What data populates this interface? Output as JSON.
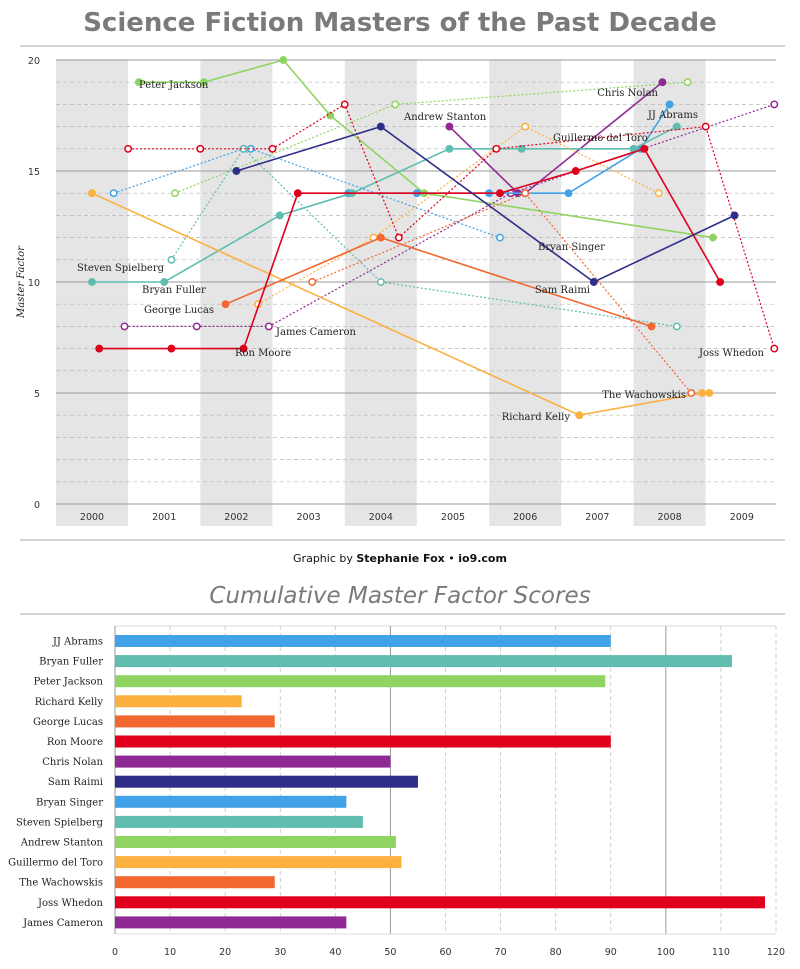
{
  "title": "Science Fiction Masters of the Past Decade",
  "credit_prefix": "Graphic by ",
  "credit_author": "Stephanie Fox",
  "credit_sep": " • ",
  "credit_site": "io9.com",
  "chart_data": [
    {
      "type": "line",
      "title": "Science Fiction Masters of the Past Decade",
      "ylabel": "Master Factor",
      "xlabel": "",
      "x": [
        "2000",
        "2001",
        "2002",
        "2003",
        "2004",
        "2005",
        "2006",
        "2007",
        "2008",
        "2009"
      ],
      "ylim": [
        0,
        20
      ],
      "yticks": [
        0,
        5,
        10,
        15,
        20
      ],
      "series": [
        {
          "name": "Peter Jackson",
          "color": "#8fd460",
          "style": "solid",
          "points": [
            [
              2000.65,
              19
            ],
            [
              2001.55,
              19
            ],
            [
              2002.65,
              20
            ],
            [
              2003.3,
              17.5
            ],
            [
              2004.6,
              14
            ],
            [
              2008.6,
              12
            ]
          ]
        },
        {
          "name": "Andrew Stanton",
          "color": "#8fd460",
          "style": "dotted",
          "points": [
            [
              2001.15,
              14
            ],
            [
              2004.2,
              18
            ],
            [
              2008.25,
              19
            ]
          ]
        },
        {
          "name": "Chris Nolan",
          "color": "#8f2a94",
          "style": "solid",
          "points": [
            [
              2004.95,
              17
            ],
            [
              2005.9,
              14
            ],
            [
              2006.0,
              14
            ],
            [
              2007.9,
              19
            ]
          ]
        },
        {
          "name": "James Cameron",
          "color": "#8f2a94",
          "style": "dotted",
          "points": [
            [
              2000.45,
              8
            ],
            [
              2001.45,
              8
            ],
            [
              2002.45,
              8
            ],
            [
              2005.8,
              14
            ],
            [
              2009.45,
              18
            ]
          ]
        },
        {
          "name": "JJ Abrams",
          "color": "#41a2e8",
          "style": "solid",
          "points": [
            [
              2003.55,
              14
            ],
            [
              2004.5,
              14
            ],
            [
              2005.5,
              14
            ],
            [
              2006.6,
              14
            ],
            [
              2007.6,
              16
            ],
            [
              2008.0,
              18
            ]
          ]
        },
        {
          "name": "Bryan Singer",
          "color": "#41a2e8",
          "style": "dotted",
          "points": [
            [
              2000.3,
              14
            ],
            [
              2002.1,
              16
            ],
            [
              2002.2,
              16
            ],
            [
              2005.65,
              12
            ]
          ]
        },
        {
          "name": "Bryan Fuller",
          "color": "#5fbdb0",
          "style": "solid",
          "points": [
            [
              2000.0,
              10
            ],
            [
              2001.0,
              10
            ],
            [
              2002.6,
              13
            ],
            [
              2003.6,
              14
            ],
            [
              2004.95,
              16
            ],
            [
              2005.95,
              16
            ],
            [
              2007.5,
              16
            ],
            [
              2008.1,
              17
            ]
          ]
        },
        {
          "name": "Steven Spielberg",
          "color": "#5fbdb0",
          "style": "dotted",
          "points": [
            [
              2001.1,
              11
            ],
            [
              2002.1,
              16
            ],
            [
              2004.0,
              10
            ],
            [
              2008.1,
              8
            ]
          ]
        },
        {
          "name": "Guillermo del Toro",
          "color": "#fbb040",
          "style": "dotted",
          "points": [
            [
              2002.3,
              9
            ],
            [
              2003.9,
              12
            ],
            [
              2006.0,
              17
            ],
            [
              2007.85,
              14
            ]
          ]
        },
        {
          "name": "Richard Kelly",
          "color": "#fbb040",
          "style": "solid",
          "points": [
            [
              2000.0,
              14
            ],
            [
              2006.75,
              4
            ],
            [
              2008.45,
              5
            ],
            [
              2008.55,
              5
            ]
          ]
        },
        {
          "name": "George Lucas",
          "color": "#f26730",
          "style": "solid",
          "points": [
            [
              2001.85,
              9
            ],
            [
              2004.0,
              12
            ],
            [
              2007.75,
              8
            ]
          ]
        },
        {
          "name": "The Wachowskis",
          "color": "#f26730",
          "style": "dotted",
          "points": [
            [
              2003.05,
              10
            ],
            [
              2006.0,
              14
            ],
            [
              2008.3,
              5
            ]
          ]
        },
        {
          "name": "Ron Moore",
          "color": "#e0001b",
          "style": "solid",
          "points": [
            [
              2000.1,
              7
            ],
            [
              2001.1,
              7
            ],
            [
              2002.1,
              7
            ],
            [
              2002.85,
              14
            ],
            [
              2005.65,
              14
            ],
            [
              2006.7,
              15
            ],
            [
              2007.65,
              16
            ],
            [
              2008.7,
              10
            ]
          ]
        },
        {
          "name": "Joss Whedon",
          "color": "#e0001b",
          "style": "dotted",
          "points": [
            [
              2000.5,
              16
            ],
            [
              2001.5,
              16
            ],
            [
              2002.5,
              16
            ],
            [
              2003.5,
              18
            ],
            [
              2004.25,
              12
            ],
            [
              2005.6,
              16
            ],
            [
              2008.5,
              17
            ],
            [
              2009.45,
              7
            ]
          ]
        },
        {
          "name": "Sam Raimi",
          "color": "#2e2e8a",
          "style": "solid",
          "points": [
            [
              2002.0,
              15
            ],
            [
              2004.0,
              17
            ],
            [
              2006.95,
              10
            ],
            [
              2008.9,
              13
            ]
          ]
        }
      ],
      "labels": [
        {
          "text": "Peter Jackson",
          "series": "Peter Jackson"
        },
        {
          "text": "Andrew Stanton",
          "series": "Andrew Stanton"
        },
        {
          "text": "Chris Nolan",
          "series": "Chris Nolan"
        },
        {
          "text": "Guillermo del Toro",
          "series": "Guillermo del Toro"
        },
        {
          "text": "JJ Abrams",
          "series": "JJ Abrams"
        },
        {
          "text": "Bryan Singer",
          "series": "Bryan Singer"
        },
        {
          "text": "Steven Spielberg",
          "series": "Steven Spielberg"
        },
        {
          "text": "Bryan Fuller",
          "series": "Bryan Fuller"
        },
        {
          "text": "Sam Raimi",
          "series": "Sam Raimi"
        },
        {
          "text": "George Lucas",
          "series": "George Lucas"
        },
        {
          "text": "James Cameron",
          "series": "James Cameron"
        },
        {
          "text": "Ron Moore",
          "series": "Ron Moore"
        },
        {
          "text": "Joss Whedon",
          "series": "Joss Whedon"
        },
        {
          "text": "The Wachowskis",
          "series": "The Wachowskis"
        },
        {
          "text": "Richard Kelly",
          "series": "Richard Kelly"
        }
      ],
      "grid": true
    },
    {
      "type": "bar",
      "orientation": "horizontal",
      "title": "Cumulative Master Factor Scores",
      "xlim": [
        0,
        120
      ],
      "xticks": [
        0,
        10,
        20,
        30,
        40,
        50,
        60,
        70,
        80,
        90,
        100,
        110,
        120
      ],
      "categories": [
        "JJ Abrams",
        "Bryan Fuller",
        "Peter Jackson",
        "Richard Kelly",
        "George Lucas",
        "Ron Moore",
        "Chris Nolan",
        "Sam Raimi",
        "Bryan Singer",
        "Steven Spielberg",
        "Andrew Stanton",
        "Guillermo del Toro",
        "The Wachowskis",
        "Joss Whedon",
        "James Cameron"
      ],
      "values": [
        90,
        112,
        89,
        23,
        29,
        90,
        50,
        55,
        42,
        45,
        51,
        52,
        29,
        118,
        42
      ],
      "colors": [
        "#41a2e8",
        "#5fbdb0",
        "#8fd460",
        "#fbb040",
        "#f26730",
        "#e0001b",
        "#8f2a94",
        "#2e2e8a",
        "#41a2e8",
        "#5fbdb0",
        "#8fd460",
        "#fbb040",
        "#f26730",
        "#e0001b",
        "#8f2a94"
      ],
      "grid": true
    }
  ]
}
